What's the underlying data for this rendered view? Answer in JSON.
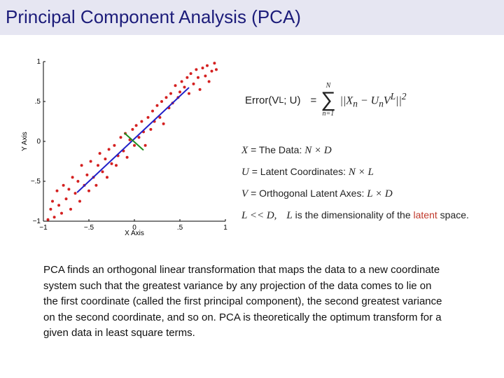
{
  "title": "Principal Component Analysis (PCA)",
  "chart_data": {
    "type": "scatter",
    "xlabel": "X Axis",
    "ylabel": "Y Axis",
    "xlim": [
      -1,
      1
    ],
    "ylim": [
      -1,
      1
    ],
    "xticks": [
      {
        "value": -1,
        "label": "−1"
      },
      {
        "value": -0.5,
        "label": "−.5"
      },
      0,
      {
        "value": 0.5,
        "label": ".5"
      },
      1
    ],
    "yticks": [
      {
        "value": -1,
        "label": "−1"
      },
      {
        "value": -0.5,
        "label": "−.5"
      },
      0,
      {
        "value": 0.5,
        "label": ".5"
      },
      1
    ],
    "color": "#d42020",
    "x": [
      -0.95,
      -0.92,
      -0.9,
      -0.88,
      -0.85,
      -0.83,
      -0.8,
      -0.78,
      -0.75,
      -0.72,
      -0.7,
      -0.68,
      -0.65,
      -0.62,
      -0.6,
      -0.58,
      -0.55,
      -0.52,
      -0.5,
      -0.48,
      -0.45,
      -0.42,
      -0.4,
      -0.38,
      -0.35,
      -0.32,
      -0.3,
      -0.28,
      -0.25,
      -0.22,
      -0.2,
      -0.18,
      -0.15,
      -0.12,
      -0.1,
      -0.08,
      -0.05,
      -0.02,
      0,
      0.02,
      0.05,
      0.08,
      0.1,
      0.12,
      0.15,
      0.18,
      0.2,
      0.22,
      0.25,
      0.28,
      0.3,
      0.32,
      0.35,
      0.38,
      0.4,
      0.42,
      0.45,
      0.48,
      0.5,
      0.52,
      0.55,
      0.58,
      0.6,
      0.62,
      0.65,
      0.68,
      0.7,
      0.72,
      0.75,
      0.78,
      0.8,
      0.82,
      0.85,
      0.88,
      0.9
    ],
    "y": [
      -0.98,
      -0.85,
      -0.75,
      -0.95,
      -0.62,
      -0.8,
      -0.9,
      -0.55,
      -0.72,
      -0.6,
      -0.85,
      -0.45,
      -0.65,
      -0.5,
      -0.75,
      -0.3,
      -0.55,
      -0.42,
      -0.62,
      -0.25,
      -0.45,
      -0.55,
      -0.3,
      -0.15,
      -0.38,
      -0.22,
      -0.45,
      -0.1,
      -0.28,
      -0.05,
      -0.3,
      -0.18,
      0.05,
      -0.12,
      0.1,
      -0.2,
      0.02,
      0.15,
      -0.05,
      0.2,
      0.05,
      0.25,
      0.12,
      -0.05,
      0.3,
      0.15,
      0.38,
      0.25,
      0.45,
      0.3,
      0.5,
      0.22,
      0.55,
      0.42,
      0.6,
      0.48,
      0.7,
      0.55,
      0.62,
      0.75,
      0.68,
      0.8,
      0.6,
      0.85,
      0.72,
      0.9,
      0.8,
      0.65,
      0.92,
      0.82,
      0.95,
      0.75,
      0.88,
      0.98,
      0.9
    ],
    "lines": [
      {
        "color": "#2020c8",
        "x": [
          -0.63,
          0.6
        ],
        "y": [
          -0.64,
          0.675
        ]
      },
      {
        "color": "#1e8c1e",
        "x": [
          -0.11,
          0.1
        ],
        "y": [
          0.105,
          -0.11
        ]
      }
    ]
  },
  "formula": {
    "lhs": "Error(V",
    "lhs_sup": "L",
    "lhs_end": "; U)",
    "eq": "=",
    "sum_top": "N",
    "sum": "∑",
    "sum_bottom": "n=1",
    "body": [
      {
        "t": "||X"
      },
      {
        "sub": "n"
      },
      {
        "t": " − U"
      },
      {
        "sub": "n"
      },
      {
        "t": "V"
      },
      {
        "sup": "L"
      },
      {
        "t": "||"
      },
      {
        "sup": "2"
      }
    ]
  },
  "definitions": [
    {
      "symbol": "X",
      "text": "= The Data:",
      "math": "N × D"
    },
    {
      "symbol": "U",
      "text": "= Latent Coordinates:",
      "math": "N × L"
    },
    {
      "symbol": "V",
      "text": "= Orthogonal Latent Axes:",
      "math": "L × D"
    }
  ],
  "note": {
    "math": "L << D,",
    "symbol": "L",
    "text": "is the dimensionality of the",
    "highlight": "latent",
    "end": "space."
  },
  "paragraph": [
    "PCA finds an orthogonal linear transformation that maps the data to a new coordinate",
    "system such that the greatest variance by any projection of the data comes to lie on",
    "the first coordinate (called the first principal component), the second greatest variance",
    "on the second coordinate, and so on. PCA is theoretically the optimum transform for a",
    "given data in least square terms."
  ]
}
